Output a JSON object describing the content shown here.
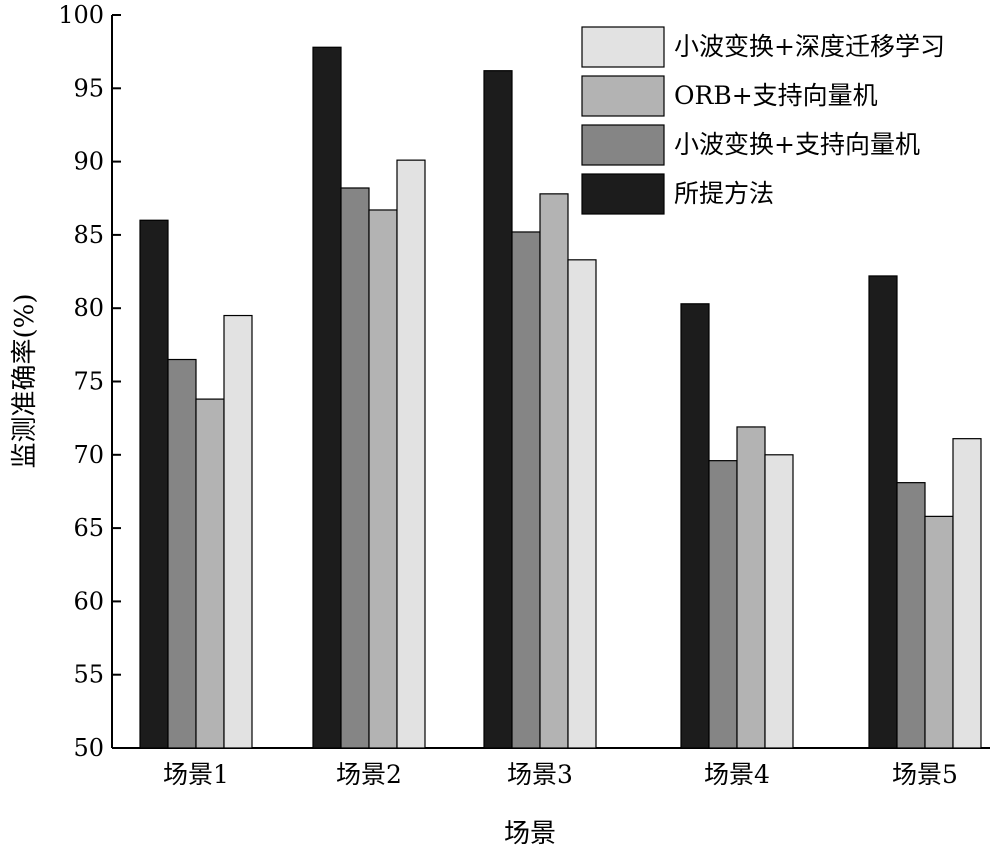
{
  "chart_data": {
    "type": "bar",
    "categories": [
      "场景1",
      "场景2",
      "场景3",
      "场景4",
      "场景5"
    ],
    "series": [
      {
        "name": "所提方法",
        "values": [
          86.0,
          97.8,
          96.2,
          80.3,
          82.2
        ],
        "color": "#1c1c1c"
      },
      {
        "name": "小波变换+支持向量机",
        "values": [
          76.5,
          88.2,
          85.2,
          69.6,
          68.1
        ],
        "color": "#858585"
      },
      {
        "name": "ORB+支持向量机",
        "values": [
          73.8,
          86.7,
          87.8,
          71.9,
          65.8
        ],
        "color": "#b3b3b3"
      },
      {
        "name": "小波变换+深度迁移学习",
        "values": [
          79.5,
          90.1,
          83.3,
          70.0,
          71.1
        ],
        "color": "#e2e2e2"
      }
    ],
    "legend_order": [
      "小波变换+深度迁移学习",
      "ORB+支持向量机",
      "小波变换+支持向量机",
      "所提方法"
    ],
    "xlabel": "场景",
    "ylabel": "监测准确率(%)",
    "ylim": [
      50,
      100
    ],
    "yticks": [
      50,
      55,
      60,
      65,
      70,
      75,
      80,
      85,
      90,
      95,
      100
    ],
    "grid": false,
    "legend_position": "top-right"
  }
}
